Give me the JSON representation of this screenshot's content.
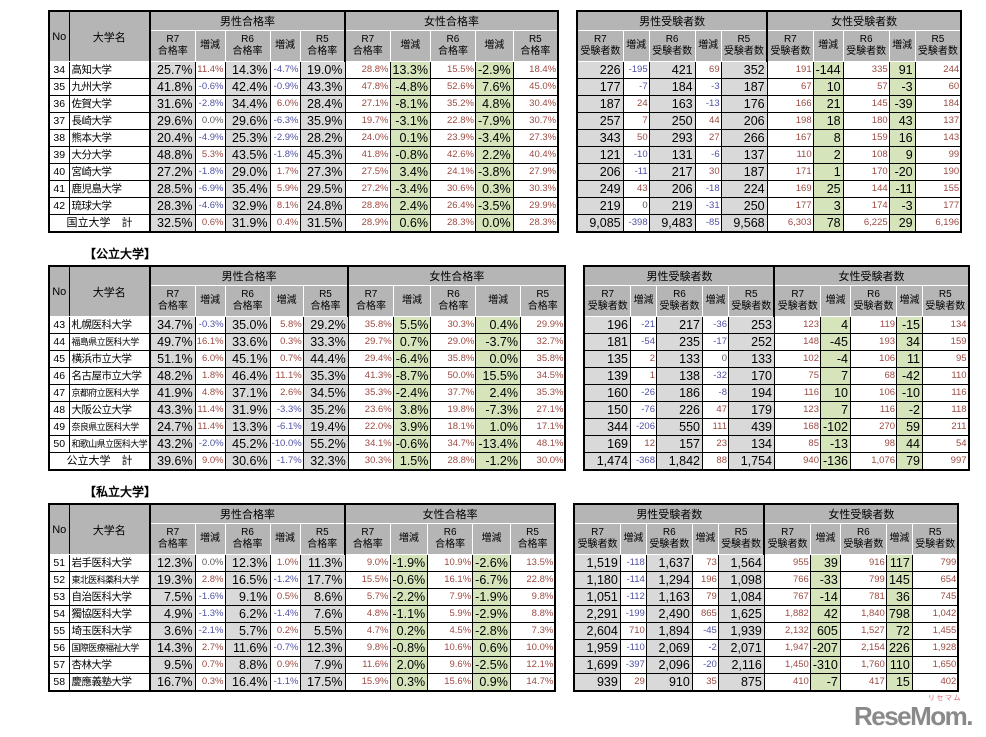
{
  "headers": {
    "no": "No",
    "university": "大学名",
    "male_rate_group": "男性合格率",
    "female_rate_group": "女性合格率",
    "male_count_group": "男性受験者数",
    "female_count_group": "女性受験者数",
    "years": [
      "R7",
      "R6",
      "R5"
    ],
    "rate_word": "合格率",
    "count_word": "受験者数",
    "change": "増減"
  },
  "colors": {
    "header_bg": "#b5b5b5",
    "male_cell_bg": "#d9d9d9",
    "female_cell_bg": "#d6e4bc",
    "positive_text": "#9c4a42",
    "negative_text": "#4f51a5",
    "zero_text": "#595959",
    "logo_gray": "#8a8a8a",
    "logo_red": "#e2606c"
  },
  "sections": [
    {
      "label": "",
      "rows": [
        {
          "no": "34",
          "name": "高知大学",
          "rates": [
            "25.7%",
            "11.4%",
            "14.3%",
            "-4.7%",
            "19.0%",
            "28.8%",
            "13.3%",
            "15.5%",
            "-2.9%",
            "18.4%"
          ],
          "counts": [
            "226",
            "-195",
            "421",
            "69",
            "352",
            "191",
            "-144",
            "335",
            "91",
            "244"
          ]
        },
        {
          "no": "35",
          "name": "九州大学",
          "rates": [
            "41.8%",
            "-0.6%",
            "42.4%",
            "-0.9%",
            "43.3%",
            "47.8%",
            "-4.8%",
            "52.6%",
            "7.6%",
            "45.0%"
          ],
          "counts": [
            "177",
            "-7",
            "184",
            "-3",
            "187",
            "67",
            "10",
            "57",
            "-3",
            "60"
          ]
        },
        {
          "no": "36",
          "name": "佐賀大学",
          "rates": [
            "31.6%",
            "-2.8%",
            "34.4%",
            "6.0%",
            "28.4%",
            "27.1%",
            "-8.1%",
            "35.2%",
            "4.8%",
            "30.4%"
          ],
          "counts": [
            "187",
            "24",
            "163",
            "-13",
            "176",
            "166",
            "21",
            "145",
            "-39",
            "184"
          ]
        },
        {
          "no": "37",
          "name": "長崎大学",
          "rates": [
            "29.6%",
            "0.0%",
            "29.6%",
            "-6.3%",
            "35.9%",
            "19.7%",
            "-3.1%",
            "22.8%",
            "-7.9%",
            "30.7%"
          ],
          "counts": [
            "257",
            "7",
            "250",
            "44",
            "206",
            "198",
            "18",
            "180",
            "43",
            "137"
          ]
        },
        {
          "no": "38",
          "name": "熊本大学",
          "rates": [
            "20.4%",
            "-4.9%",
            "25.3%",
            "-2.9%",
            "28.2%",
            "24.0%",
            "0.1%",
            "23.9%",
            "-3.4%",
            "27.3%"
          ],
          "counts": [
            "343",
            "50",
            "293",
            "27",
            "266",
            "167",
            "8",
            "159",
            "16",
            "143"
          ]
        },
        {
          "no": "39",
          "name": "大分大学",
          "rates": [
            "48.8%",
            "5.3%",
            "43.5%",
            "-1.8%",
            "45.3%",
            "41.8%",
            "-0.8%",
            "42.6%",
            "2.2%",
            "40.4%"
          ],
          "counts": [
            "121",
            "-10",
            "131",
            "-6",
            "137",
            "110",
            "2",
            "108",
            "9",
            "99"
          ]
        },
        {
          "no": "40",
          "name": "宮崎大学",
          "rates": [
            "27.2%",
            "-1.8%",
            "29.0%",
            "1.7%",
            "27.3%",
            "27.5%",
            "3.4%",
            "24.1%",
            "-3.8%",
            "27.9%"
          ],
          "counts": [
            "206",
            "-11",
            "217",
            "30",
            "187",
            "171",
            "1",
            "170",
            "-20",
            "190"
          ]
        },
        {
          "no": "41",
          "name": "鹿児島大学",
          "rates": [
            "28.5%",
            "-6.9%",
            "35.4%",
            "5.9%",
            "29.5%",
            "27.2%",
            "-3.4%",
            "30.6%",
            "0.3%",
            "30.3%"
          ],
          "counts": [
            "249",
            "43",
            "206",
            "-18",
            "224",
            "169",
            "25",
            "144",
            "-11",
            "155"
          ]
        },
        {
          "no": "42",
          "name": "琉球大学",
          "rates": [
            "28.3%",
            "-4.6%",
            "32.9%",
            "8.1%",
            "24.8%",
            "28.8%",
            "2.4%",
            "26.4%",
            "-3.5%",
            "29.9%"
          ],
          "counts": [
            "219",
            "0",
            "219",
            "-31",
            "250",
            "177",
            "3",
            "174",
            "-3",
            "177"
          ]
        }
      ],
      "total": {
        "label": "国立大学　計",
        "rates": [
          "32.5%",
          "0.6%",
          "31.9%",
          "0.4%",
          "31.5%",
          "28.9%",
          "0.6%",
          "28.3%",
          "0.0%",
          "28.3%"
        ],
        "counts": [
          "9,085",
          "-398",
          "9,483",
          "-85",
          "9,568",
          "6,303",
          "78",
          "6,225",
          "29",
          "6,196"
        ]
      }
    },
    {
      "label": "【公立大学】",
      "rows": [
        {
          "no": "43",
          "name": "札幌医科大学",
          "rates": [
            "34.7%",
            "-0.3%",
            "35.0%",
            "5.8%",
            "29.2%",
            "35.8%",
            "5.5%",
            "30.3%",
            "0.4%",
            "29.9%"
          ],
          "counts": [
            "196",
            "-21",
            "217",
            "-36",
            "253",
            "123",
            "4",
            "119",
            "-15",
            "134"
          ]
        },
        {
          "no": "44",
          "name": "福島県立医科大学",
          "rates": [
            "49.7%",
            "16.1%",
            "33.6%",
            "0.3%",
            "33.3%",
            "29.7%",
            "0.7%",
            "29.0%",
            "-3.7%",
            "32.7%"
          ],
          "counts": [
            "181",
            "-54",
            "235",
            "-17",
            "252",
            "148",
            "-45",
            "193",
            "34",
            "159"
          ]
        },
        {
          "no": "45",
          "name": "横浜市立大学",
          "rates": [
            "51.1%",
            "6.0%",
            "45.1%",
            "0.7%",
            "44.4%",
            "29.4%",
            "-6.4%",
            "35.8%",
            "0.0%",
            "35.8%"
          ],
          "counts": [
            "135",
            "2",
            "133",
            "0",
            "133",
            "102",
            "-4",
            "106",
            "11",
            "95"
          ]
        },
        {
          "no": "46",
          "name": "名古屋市立大学",
          "rates": [
            "48.2%",
            "1.8%",
            "46.4%",
            "11.1%",
            "35.3%",
            "41.3%",
            "-8.7%",
            "50.0%",
            "15.5%",
            "34.5%"
          ],
          "counts": [
            "139",
            "1",
            "138",
            "-32",
            "170",
            "75",
            "7",
            "68",
            "-42",
            "110"
          ]
        },
        {
          "no": "47",
          "name": "京都府立医科大学",
          "rates": [
            "41.9%",
            "4.8%",
            "37.1%",
            "2.6%",
            "34.5%",
            "35.3%",
            "-2.4%",
            "37.7%",
            "2.4%",
            "35.3%"
          ],
          "counts": [
            "160",
            "-26",
            "186",
            "-8",
            "194",
            "116",
            "10",
            "106",
            "-10",
            "116"
          ]
        },
        {
          "no": "48",
          "name": "大阪公立大学",
          "rates": [
            "43.3%",
            "11.4%",
            "31.9%",
            "-3.3%",
            "35.2%",
            "23.6%",
            "3.8%",
            "19.8%",
            "-7.3%",
            "27.1%"
          ],
          "counts": [
            "150",
            "-76",
            "226",
            "47",
            "179",
            "123",
            "7",
            "116",
            "-2",
            "118"
          ]
        },
        {
          "no": "49",
          "name": "奈良県立医科大学",
          "rates": [
            "24.7%",
            "11.4%",
            "13.3%",
            "-6.1%",
            "19.4%",
            "22.0%",
            "3.9%",
            "18.1%",
            "1.0%",
            "17.1%"
          ],
          "counts": [
            "344",
            "-206",
            "550",
            "111",
            "439",
            "168",
            "-102",
            "270",
            "59",
            "211"
          ]
        },
        {
          "no": "50",
          "name": "和歌山県立医科大学",
          "rates": [
            "43.2%",
            "-2.0%",
            "45.2%",
            "-10.0%",
            "55.2%",
            "34.1%",
            "-0.6%",
            "34.7%",
            "-13.4%",
            "48.1%"
          ],
          "counts": [
            "169",
            "12",
            "157",
            "23",
            "134",
            "85",
            "-13",
            "98",
            "44",
            "54"
          ]
        }
      ],
      "total": {
        "label": "公立大学　計",
        "rates": [
          "39.6%",
          "9.0%",
          "30.6%",
          "-1.7%",
          "32.3%",
          "30.3%",
          "1.5%",
          "28.8%",
          "-1.2%",
          "30.0%"
        ],
        "counts": [
          "1,474",
          "-368",
          "1,842",
          "88",
          "1,754",
          "940",
          "-136",
          "1,076",
          "79",
          "997"
        ]
      }
    },
    {
      "label": "【私立大学】",
      "rows": [
        {
          "no": "51",
          "name": "岩手医科大学",
          "rates": [
            "12.3%",
            "0.0%",
            "12.3%",
            "1.0%",
            "11.3%",
            "9.0%",
            "-1.9%",
            "10.9%",
            "-2.6%",
            "13.5%"
          ],
          "counts": [
            "1,519",
            "-118",
            "1,637",
            "73",
            "1,564",
            "955",
            "39",
            "916",
            "117",
            "799"
          ]
        },
        {
          "no": "52",
          "name": "東北医科薬科大学",
          "rates": [
            "19.3%",
            "2.8%",
            "16.5%",
            "-1.2%",
            "17.7%",
            "15.5%",
            "-0.6%",
            "16.1%",
            "-6.7%",
            "22.8%"
          ],
          "counts": [
            "1,180",
            "-114",
            "1,294",
            "196",
            "1,098",
            "766",
            "-33",
            "799",
            "145",
            "654"
          ]
        },
        {
          "no": "53",
          "name": "自治医科大学",
          "rates": [
            "7.5%",
            "-1.6%",
            "9.1%",
            "0.5%",
            "8.6%",
            "5.7%",
            "-2.2%",
            "7.9%",
            "-1.9%",
            "9.8%"
          ],
          "counts": [
            "1,051",
            "-112",
            "1,163",
            "79",
            "1,084",
            "767",
            "-14",
            "781",
            "36",
            "745"
          ]
        },
        {
          "no": "54",
          "name": "獨協医科大学",
          "rates": [
            "4.9%",
            "-1.3%",
            "6.2%",
            "-1.4%",
            "7.6%",
            "4.8%",
            "-1.1%",
            "5.9%",
            "-2.9%",
            "8.8%"
          ],
          "counts": [
            "2,291",
            "-199",
            "2,490",
            "865",
            "1,625",
            "1,882",
            "42",
            "1,840",
            "798",
            "1,042"
          ]
        },
        {
          "no": "55",
          "name": "埼玉医科大学",
          "rates": [
            "3.6%",
            "-2.1%",
            "5.7%",
            "0.2%",
            "5.5%",
            "4.7%",
            "0.2%",
            "4.5%",
            "-2.8%",
            "7.3%"
          ],
          "counts": [
            "2,604",
            "710",
            "1,894",
            "-45",
            "1,939",
            "2,132",
            "605",
            "1,527",
            "72",
            "1,455"
          ]
        },
        {
          "no": "56",
          "name": "国際医療福祉大学",
          "rates": [
            "14.3%",
            "2.7%",
            "11.6%",
            "-0.7%",
            "12.3%",
            "9.8%",
            "-0.8%",
            "10.6%",
            "0.6%",
            "10.0%"
          ],
          "counts": [
            "1,959",
            "-110",
            "2,069",
            "-2",
            "2,071",
            "1,947",
            "-207",
            "2,154",
            "226",
            "1,928"
          ]
        },
        {
          "no": "57",
          "name": "杏林大学",
          "rates": [
            "9.5%",
            "0.7%",
            "8.8%",
            "0.9%",
            "7.9%",
            "11.6%",
            "2.0%",
            "9.6%",
            "-2.5%",
            "12.1%"
          ],
          "counts": [
            "1,699",
            "-397",
            "2,096",
            "-20",
            "2,116",
            "1,450",
            "-310",
            "1,760",
            "110",
            "1,650"
          ]
        },
        {
          "no": "58",
          "name": "慶應義塾大学",
          "rates": [
            "16.7%",
            "0.3%",
            "16.4%",
            "-1.1%",
            "17.5%",
            "15.9%",
            "0.3%",
            "15.6%",
            "0.9%",
            "14.7%"
          ],
          "counts": [
            "939",
            "29",
            "910",
            "35",
            "875",
            "410",
            "-7",
            "417",
            "15",
            "402"
          ]
        }
      ],
      "total": null
    }
  ],
  "logo": {
    "kana": "リセマム",
    "text": "ReseMom."
  }
}
